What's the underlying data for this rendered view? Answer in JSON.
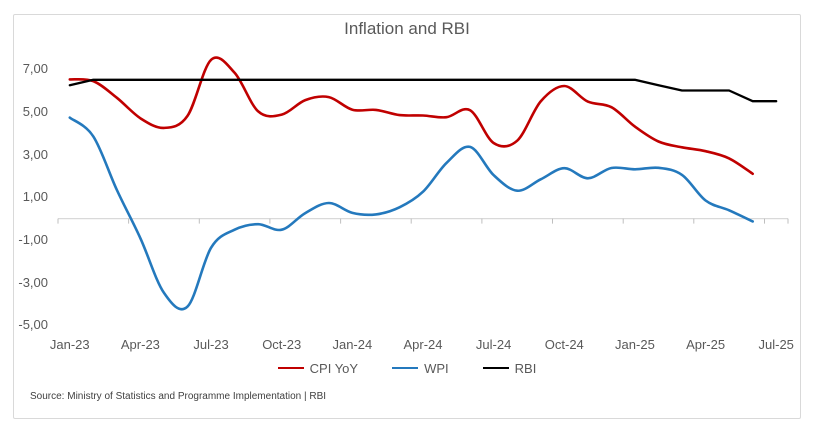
{
  "title": "Inflation and RBI",
  "source_note": "Source: Ministry of Statistics and Programme Implementation | RBI",
  "colors": {
    "cpi_line": "#c00000",
    "wpi_line": "#2479bd",
    "rbi_line": "#000000",
    "zero_axis_line": "#d9d9d9",
    "axis_tick": "#bfbfbf",
    "text": "#595959",
    "frame_border": "#d9d9d9"
  },
  "chart_data": {
    "type": "line",
    "title": "Inflation and RBI",
    "categories": [
      "Jan-23",
      "Feb-23",
      "Mar-23",
      "Apr-23",
      "May-23",
      "Jun-23",
      "Jul-23",
      "Aug-23",
      "Sep-23",
      "Oct-23",
      "Nov-23",
      "Dec-23",
      "Jan-24",
      "Feb-24",
      "Mar-24",
      "Apr-24",
      "May-24",
      "Jun-24",
      "Jul-24",
      "Aug-24",
      "Sep-24",
      "Oct-24",
      "Nov-24",
      "Dec-24",
      "Jan-25",
      "Feb-25",
      "Mar-25",
      "Apr-25",
      "May-25",
      "Jun-25",
      "Jul-25"
    ],
    "x_axis": {
      "label_every": 3,
      "tick_labels": [
        "Jan-23",
        "Apr-23",
        "Jul-23",
        "Oct-23",
        "Jan-24",
        "Apr-24",
        "Jul-24",
        "Oct-24",
        "Jan-25",
        "Apr-25",
        "Jul-25"
      ]
    },
    "y_axis": {
      "min": -5,
      "max": 8,
      "tick_values": [
        7,
        5,
        3,
        1,
        -1,
        -3,
        -5
      ],
      "tick_labels": [
        "7,00",
        "5,00",
        "3,00",
        "1,00",
        "-1,00",
        "-3,00",
        "-5,00"
      ]
    },
    "grid": "zero-line-only",
    "legend_position": "bottom",
    "series": [
      {
        "name": "CPI YoY",
        "color": "#c00000",
        "smooth": true,
        "values": [
          6.52,
          6.44,
          5.66,
          4.7,
          4.25,
          4.81,
          7.44,
          6.83,
          5.02,
          4.87,
          5.55,
          5.69,
          5.1,
          5.09,
          4.85,
          4.83,
          4.75,
          5.08,
          3.54,
          3.65,
          5.49,
          6.21,
          5.48,
          5.22,
          4.31,
          3.61,
          3.34,
          3.16,
          2.82,
          2.1,
          null
        ]
      },
      {
        "name": "WPI",
        "color": "#2479bd",
        "smooth": true,
        "values": [
          4.73,
          3.85,
          1.34,
          -0.92,
          -3.48,
          -4.12,
          -1.36,
          -0.52,
          -0.26,
          -0.52,
          0.26,
          0.73,
          0.27,
          0.2,
          0.53,
          1.26,
          2.61,
          3.36,
          2.04,
          1.31,
          1.84,
          2.36,
          1.89,
          2.37,
          2.31,
          2.38,
          2.05,
          0.85,
          0.39,
          -0.13,
          null
        ]
      },
      {
        "name": "RBI",
        "color": "#000000",
        "smooth": false,
        "values": [
          6.25,
          6.5,
          6.5,
          6.5,
          6.5,
          6.5,
          6.5,
          6.5,
          6.5,
          6.5,
          6.5,
          6.5,
          6.5,
          6.5,
          6.5,
          6.5,
          6.5,
          6.5,
          6.5,
          6.5,
          6.5,
          6.5,
          6.5,
          6.5,
          6.5,
          6.25,
          6.0,
          6.0,
          6.0,
          5.5,
          5.5
        ]
      }
    ]
  }
}
